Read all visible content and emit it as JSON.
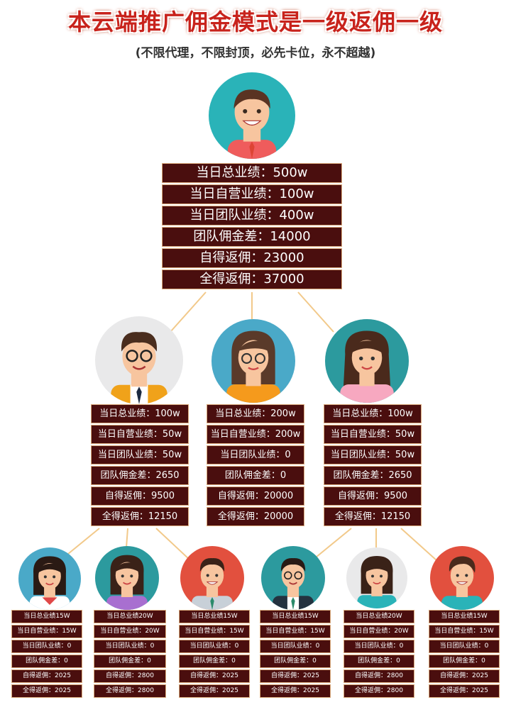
{
  "header": {
    "title": "本云端推广佣金模式是一级返佣一级",
    "subtitle": "(不限代理，不限封顶，必先卡位，永不超越)"
  },
  "colors": {
    "box_bg": "#4a0e0e",
    "box_border": "#d9a87a",
    "line": "#f2c98a",
    "title": "#c8231c"
  },
  "top": {
    "avatar": "man-avatar-icon",
    "rows": [
      "当日总业绩：500w",
      "当日自营业绩：100w",
      "当日团队业绩：400w",
      "团队佣金差：14000",
      "自得返佣：23000",
      "全得返佣：37000"
    ]
  },
  "level1": [
    {
      "avatar": "man-glasses-avatar-icon",
      "rows": [
        "当日总业绩：100w",
        "当日自营业绩：50w",
        "当日团队业绩：50w",
        "团队佣金差：2650",
        "自得返佣：9500",
        "全得返佣：12150"
      ]
    },
    {
      "avatar": "woman-glasses-avatar-icon",
      "rows": [
        "当日总业绩：200w",
        "当日自营业绩：200w",
        "当日团队业绩：0",
        "团队佣金差：0",
        "自得返佣：20000",
        "全得返佣：20000"
      ]
    },
    {
      "avatar": "woman-avatar-icon",
      "rows": [
        "当日总业绩：100w",
        "当日自营业绩：50w",
        "当日团队业绩：50w",
        "团队佣金差：2650",
        "自得返佣：9500",
        "全得返佣：12150"
      ]
    }
  ],
  "level2": [
    {
      "avatar": "woman-avatar-icon",
      "rows": [
        "当日总业绩15W",
        "当日自营业绩：15W",
        "当日团队业绩：0",
        "团队佣金差：0",
        "自得返佣：2025",
        "全得返佣：2025"
      ]
    },
    {
      "avatar": "woman-avatar-icon",
      "rows": [
        "当日总业绩20W",
        "当日自营业绩：20W",
        "当日团队业绩：0",
        "团队佣金差：0",
        "自得返佣：2800",
        "全得返佣：2800"
      ]
    },
    {
      "avatar": "man-avatar-icon",
      "rows": [
        "当日总业绩15W",
        "当日自营业绩：15W",
        "当日团队业绩：0",
        "团队佣金差：0",
        "自得返佣：2025",
        "全得返佣：2025"
      ]
    },
    {
      "avatar": "man-glasses-avatar-icon",
      "rows": [
        "当日总业绩15W",
        "当日自营业绩：15W",
        "当日团队业绩：0",
        "团队佣金差：0",
        "自得返佣：2025",
        "全得返佣：2025"
      ]
    },
    {
      "avatar": "woman-avatar-icon",
      "rows": [
        "当日总业绩20W",
        "当日自营业绩：20W",
        "当日团队业绩：0",
        "团队佣金差：0",
        "自得返佣：2800",
        "全得返佣：2800"
      ]
    },
    {
      "avatar": "man-avatar-icon",
      "rows": [
        "当日总业绩15W",
        "当日自营业绩：15W",
        "当日团队业绩：0",
        "团队佣金差：0",
        "自得返佣：2025",
        "全得返佣：2025"
      ]
    }
  ]
}
